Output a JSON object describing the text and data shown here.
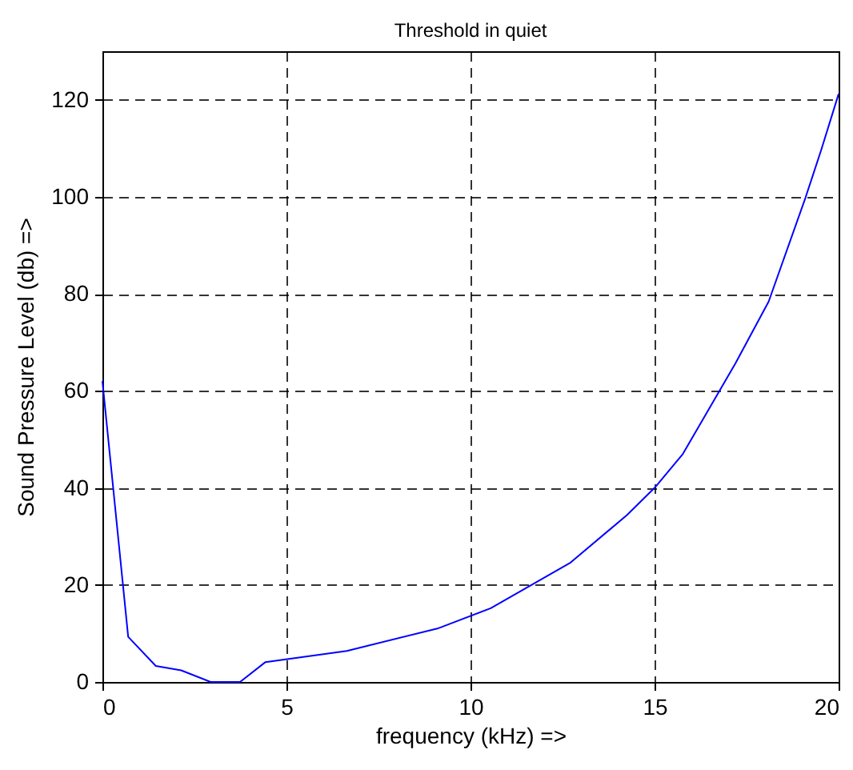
{
  "chart_data": {
    "type": "line",
    "title": "Threshold in quiet",
    "xlabel": "frequency (kHz) =>",
    "ylabel": "Sound Pressure Level (db) =>",
    "x": [
      0,
      0.7,
      1.45,
      2.14,
      2.94,
      3.74,
      4.43,
      6.64,
      9.1,
      10.55,
      12.7,
      14.25,
      15,
      15.77,
      17.2,
      18.1,
      19.1,
      19.53,
      20
    ],
    "series": [
      {
        "color": "#0000ff",
        "values": [
          62,
          9.3,
          3.3,
          2.4,
          0,
          0,
          4.1,
          6.4,
          11,
          15.2,
          24.5,
          34.4,
          40,
          47,
          65.7,
          78.4,
          99.8,
          109.7,
          121.2
        ]
      }
    ],
    "xlim": [
      0,
      20
    ],
    "xticks": [
      0,
      5,
      10,
      15,
      20
    ],
    "ylim": [
      0,
      130
    ],
    "yticks": [
      0,
      20,
      40,
      60,
      80,
      100,
      120
    ],
    "grid": true,
    "line_style": "solid",
    "marker": "none"
  }
}
